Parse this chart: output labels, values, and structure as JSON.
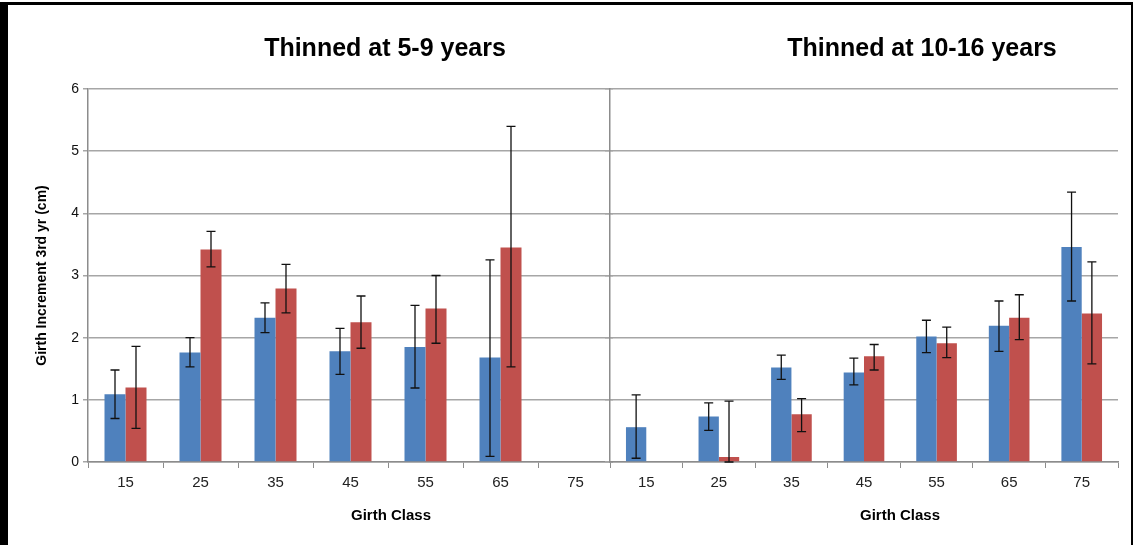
{
  "chart_data": [
    {
      "type": "bar",
      "title": "Thinned at 5-9 years",
      "xlabel": "Girth Class",
      "ylabel": "Girth Increment 3rd yr (cm)",
      "categories": [
        "15",
        "25",
        "35",
        "45",
        "55",
        "65",
        "75"
      ],
      "series": [
        {
          "color": "#4f81bd",
          "values": [
            1.09,
            1.76,
            2.32,
            1.78,
            1.85,
            1.68,
            null
          ],
          "errors": [
            [
              0.7,
              1.48
            ],
            [
              1.53,
              2.0
            ],
            [
              2.08,
              2.56
            ],
            [
              1.41,
              2.15
            ],
            [
              1.19,
              2.52
            ],
            [
              0.09,
              3.25
            ],
            null
          ]
        },
        {
          "color": "#c0504d",
          "values": [
            1.2,
            3.42,
            2.79,
            2.25,
            2.47,
            3.45,
            null
          ],
          "errors": [
            [
              0.54,
              1.86
            ],
            [
              3.14,
              3.71
            ],
            [
              2.4,
              3.18
            ],
            [
              1.83,
              2.67
            ],
            [
              1.91,
              3.0
            ],
            [
              1.53,
              5.4
            ],
            null
          ]
        }
      ],
      "ylim": [
        0,
        6
      ],
      "yticks": [
        0,
        1,
        2,
        3,
        4,
        5,
        6
      ],
      "grid": "y"
    },
    {
      "type": "bar",
      "title": "Thinned at 10-16 years",
      "xlabel": "Girth Class",
      "categories": [
        "15",
        "25",
        "35",
        "45",
        "55",
        "65",
        "75"
      ],
      "series": [
        {
          "color": "#4f81bd",
          "values": [
            0.56,
            0.73,
            1.52,
            1.44,
            2.02,
            2.19,
            3.46
          ],
          "errors": [
            [
              0.06,
              1.08
            ],
            [
              0.51,
              0.95
            ],
            [
              1.33,
              1.72
            ],
            [
              1.24,
              1.67
            ],
            [
              1.76,
              2.28
            ],
            [
              1.78,
              2.59
            ],
            [
              2.59,
              4.34
            ]
          ]
        },
        {
          "color": "#c0504d",
          "values": [
            null,
            0.08,
            0.77,
            1.7,
            1.91,
            2.32,
            2.39
          ],
          "errors": [
            null,
            [
              0,
              0.98
            ],
            [
              0.49,
              1.02
            ],
            [
              1.48,
              1.89
            ],
            [
              1.68,
              2.17
            ],
            [
              1.97,
              2.69
            ],
            [
              1.58,
              3.22
            ]
          ]
        }
      ],
      "ylim": [
        0,
        6
      ],
      "yticks": [
        0,
        1,
        2,
        3,
        4,
        5,
        6
      ],
      "grid": "y",
      "tick_labels": "x"
    }
  ]
}
